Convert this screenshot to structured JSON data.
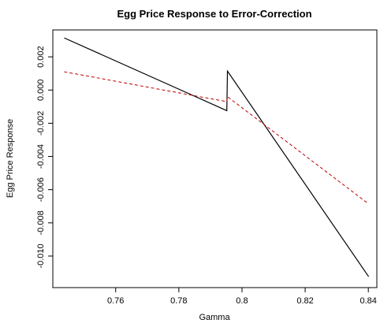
{
  "chart_data": {
    "type": "line",
    "title": "Egg Price Response to Error-Correction",
    "x_label": "Gamma",
    "y_label": "Egg Price Response",
    "xlim": [
      0.7401,
      0.8427
    ],
    "ylim": [
      -0.0119,
      0.00362
    ],
    "xticks": [
      0.76,
      0.78,
      0.8,
      0.82,
      0.84
    ],
    "yticks": [
      0.002,
      {
        "value": 0,
        "label": "0.000"
      },
      -0.002,
      -0.004,
      -0.006,
      -0.008,
      {
        "value": -0.01,
        "label": "-0.010"
      }
    ],
    "series": [
      {
        "color": "#000000",
        "dash": "solid",
        "x": [
          0.7437,
          0.7952,
          0.7954,
          0.8401
        ],
        "values": [
          0.00314,
          -0.00124,
          0.00114,
          -0.01124
        ]
      },
      {
        "color": "#c00000",
        "dash": "dashed",
        "x": [
          0.7437,
          0.7952,
          0.7954,
          0.8401
        ],
        "values": [
          0.0011,
          -0.0007,
          -0.0004,
          -0.00686
        ]
      }
    ]
  }
}
